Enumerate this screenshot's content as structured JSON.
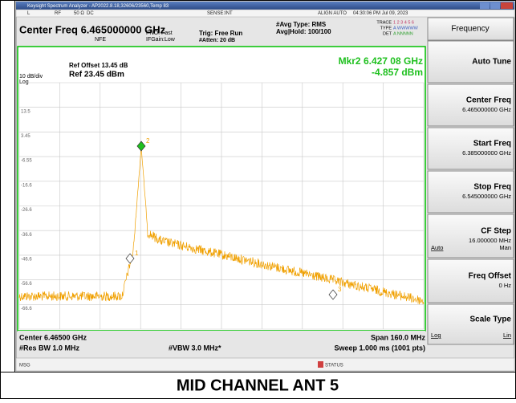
{
  "title_bar": "Keysight Spectrum Analyzer - AP2022.8.18,32606/23560,Temp 83",
  "status_row": {
    "input": "L",
    "rf": "RF",
    "impedance": "50 Ω",
    "coupling": "DC",
    "sense": "SENSE:INT",
    "align": "ALIGN AUTO",
    "datetime": "04:30:06 PM Jul 09, 2023"
  },
  "header": {
    "center_freq": "Center Freq 6.465000000 GHz",
    "nfe": "NFE",
    "pno": "PNO: Fast",
    "ifgain": "IFGain:Low",
    "trig": "Trig: Free Run",
    "atten": "#Atten: 20 dB",
    "avg_type": "#Avg Type: RMS",
    "avg_hold": "Avg|Hold: 100/100",
    "trace": [
      "TRACE",
      "1 2 3 4 5 6"
    ],
    "type": [
      "TYPE",
      "A WWWWW"
    ],
    "det": [
      "DET",
      "A NNNNN"
    ]
  },
  "graph": {
    "ref_offset": "Ref Offset 13.45 dB",
    "scale": "10 dB/div",
    "ref_level": "Ref 23.45 dBm",
    "log": "Log",
    "marker_freq": "Mkr2 6.427 08 GHz",
    "marker_level": "-4.857 dBm",
    "y_labels": [
      "13.5",
      "3.45",
      "-6.55",
      "-16.6",
      "-26.6",
      "-36.6",
      "-46.6",
      "-56.6",
      "-66.6"
    ],
    "markers": [
      "1",
      "2",
      "3"
    ]
  },
  "footer": {
    "center": "Center 6.46500 GHz",
    "span": "Span 160.0 MHz",
    "rbw": "#Res BW 1.0 MHz",
    "vbw": "#VBW 3.0 MHz*",
    "sweep": "Sweep  1.000 ms (1001 pts)"
  },
  "status_bar": {
    "msg": "MSG",
    "status": "STATUS"
  },
  "softkeys": {
    "title": "Frequency",
    "buttons": [
      {
        "label": "Auto Tune"
      },
      {
        "label": "Center Freq",
        "value": "6.465000000 GHz"
      },
      {
        "label": "Start Freq",
        "value": "6.385000000 GHz"
      },
      {
        "label": "Stop Freq",
        "value": "6.545000000 GHz"
      },
      {
        "label": "CF Step",
        "value": "16.000000 MHz",
        "left": "Auto",
        "right": "Man"
      },
      {
        "label": "Freq Offset",
        "value": "0 Hz"
      },
      {
        "label": "Scale Type",
        "left": "Log",
        "right": "Lin"
      }
    ]
  },
  "caption": "MID CHANNEL ANT 5"
}
